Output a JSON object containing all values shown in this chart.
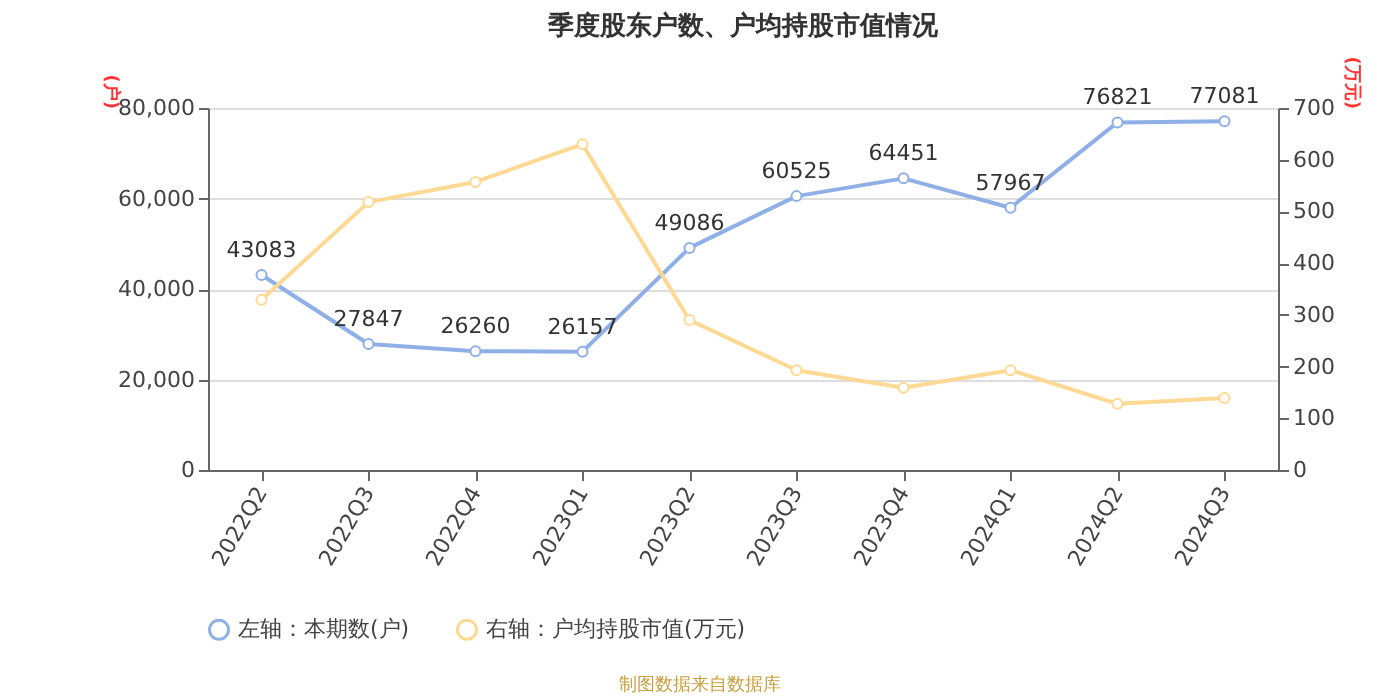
{
  "chart_data": {
    "type": "line",
    "title": "季度股东户数、户均持股市值情况",
    "categories": [
      "2022Q2",
      "2022Q3",
      "2022Q4",
      "2023Q1",
      "2023Q2",
      "2023Q3",
      "2023Q4",
      "2024Q1",
      "2024Q2",
      "2024Q3"
    ],
    "series": [
      {
        "name": "左轴：本期数(户)",
        "color": "#8fb0e6",
        "data_labels": true,
        "values": [
          43083,
          27847,
          26260,
          26157,
          49086,
          60525,
          64451,
          57967,
          76821,
          77081
        ]
      },
      {
        "name": "右轴：户均持股市值(万元)",
        "color": "#fdd993",
        "axis": "y2",
        "values": [
          329,
          518,
          557,
          630,
          290,
          193,
          159,
          193,
          128,
          139
        ]
      }
    ],
    "ylabel": "(户)",
    "y2label": "(万元)",
    "ylim": [
      0,
      80000
    ],
    "yticks": [
      {
        "value": 0,
        "label": "0"
      },
      {
        "value": 20000,
        "label": "20,000"
      },
      {
        "value": 40000,
        "label": "40,000"
      },
      {
        "value": 60000,
        "label": "60,000"
      },
      {
        "value": 80000,
        "label": "80,000"
      }
    ],
    "y2lim": [
      0,
      700
    ],
    "y2ticks": [
      0,
      100,
      200,
      300,
      400,
      500,
      600,
      700
    ],
    "grid": "y",
    "legend": "bottom",
    "marker": "circle",
    "annotations": [
      "制图数据来自数据库"
    ]
  }
}
